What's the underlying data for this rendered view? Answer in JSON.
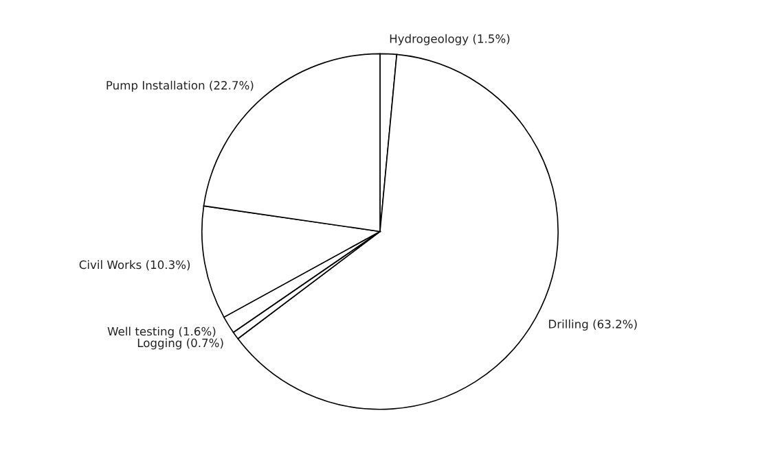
{
  "chart_data": {
    "type": "pie",
    "categories": [
      "Hydrogeology (1.5%)",
      "Drilling (63.2%)",
      "Logging (0.7%)",
      "Well testing (1.6%)",
      "Civil Works (10.3%)",
      "Pump Installation (22.7%)"
    ],
    "values": [
      1.5,
      63.2,
      0.7,
      1.6,
      10.3,
      22.7
    ],
    "colors": [
      "#ffffff",
      "#ffffff",
      "#ffffff",
      "#ffffff",
      "#ffffff",
      "#ffffff"
    ]
  }
}
